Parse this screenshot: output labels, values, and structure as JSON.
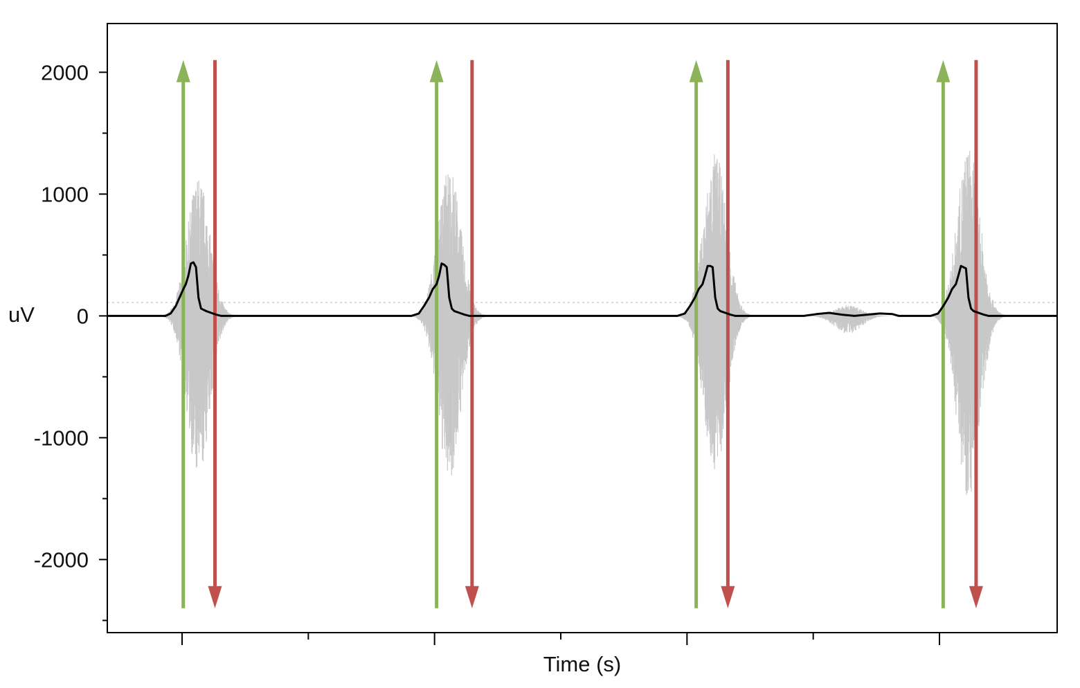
{
  "chart_data": {
    "type": "line",
    "xlabel": "Time (s)",
    "ylabel": "uV",
    "ylim": [
      -2600,
      2400
    ],
    "yticks": [
      2000,
      1000,
      0,
      -1000,
      -2000
    ],
    "yticks_minor": [
      1500,
      500,
      -500,
      -1500,
      -2500
    ],
    "x_tick_count": 7,
    "grid": false,
    "colors": {
      "raw_emg": "#c8c8c8",
      "envelope": "#000000",
      "onset": "#8db35a",
      "offset": "#c0504d",
      "threshold": "#cfcfcf"
    },
    "threshold_uV": 110,
    "series": [
      {
        "role": "envelope",
        "x": [
          0.0,
          0.46,
          0.5,
          0.54,
          0.57,
          0.6,
          0.62,
          0.64,
          0.66,
          0.68,
          0.7,
          0.72,
          0.74,
          0.78,
          0.82,
          0.86,
          0.9,
          1.1,
          2.4,
          2.46,
          2.5,
          2.54,
          2.57,
          2.6,
          2.62,
          2.64,
          2.66,
          2.68,
          2.7,
          2.72,
          2.74,
          2.78,
          2.82,
          2.86,
          2.9,
          3.1,
          4.5,
          4.56,
          4.6,
          4.64,
          4.67,
          4.7,
          4.72,
          4.74,
          4.76,
          4.78,
          4.8,
          4.82,
          4.84,
          4.88,
          4.92,
          4.96,
          5.0,
          5.2,
          5.5,
          5.6,
          5.7,
          5.8,
          5.9,
          6.0,
          6.1,
          6.2,
          6.25,
          6.3,
          6.5,
          6.56,
          6.6,
          6.64,
          6.67,
          6.7,
          6.72,
          6.74,
          6.76,
          6.78,
          6.8,
          6.82,
          6.84,
          6.88,
          6.92,
          6.96,
          7.0,
          7.2,
          7.5
        ],
        "y": [
          0,
          0,
          20,
          80,
          150,
          220,
          260,
          330,
          430,
          440,
          400,
          150,
          60,
          40,
          25,
          10,
          0,
          0,
          0,
          20,
          80,
          150,
          220,
          260,
          330,
          430,
          420,
          400,
          150,
          60,
          40,
          25,
          10,
          0,
          0,
          0,
          0,
          20,
          80,
          150,
          220,
          260,
          330,
          410,
          410,
          400,
          150,
          60,
          40,
          25,
          10,
          0,
          0,
          0,
          0,
          15,
          25,
          10,
          0,
          10,
          20,
          15,
          0,
          0,
          0,
          20,
          80,
          150,
          220,
          260,
          330,
          410,
          400,
          390,
          150,
          60,
          40,
          25,
          10,
          0,
          0,
          0,
          0
        ]
      }
    ],
    "bursts": [
      {
        "center": 0.72,
        "amp_pos": 1150,
        "amp_neg": 1350
      },
      {
        "center": 2.7,
        "amp_pos": 1250,
        "amp_neg": 1350
      },
      {
        "center": 4.8,
        "amp_pos": 1350,
        "amp_neg": 1300
      },
      {
        "center": 6.8,
        "amp_pos": 1400,
        "amp_neg": 1500
      },
      {
        "center": 5.85,
        "amp_pos": 90,
        "amp_neg": 150
      }
    ],
    "onset_markers": [
      0.6,
      2.6,
      4.65,
      6.6
    ],
    "offset_markers": [
      0.85,
      2.88,
      4.9,
      6.86
    ],
    "x_range": [
      0,
      7.5
    ]
  }
}
